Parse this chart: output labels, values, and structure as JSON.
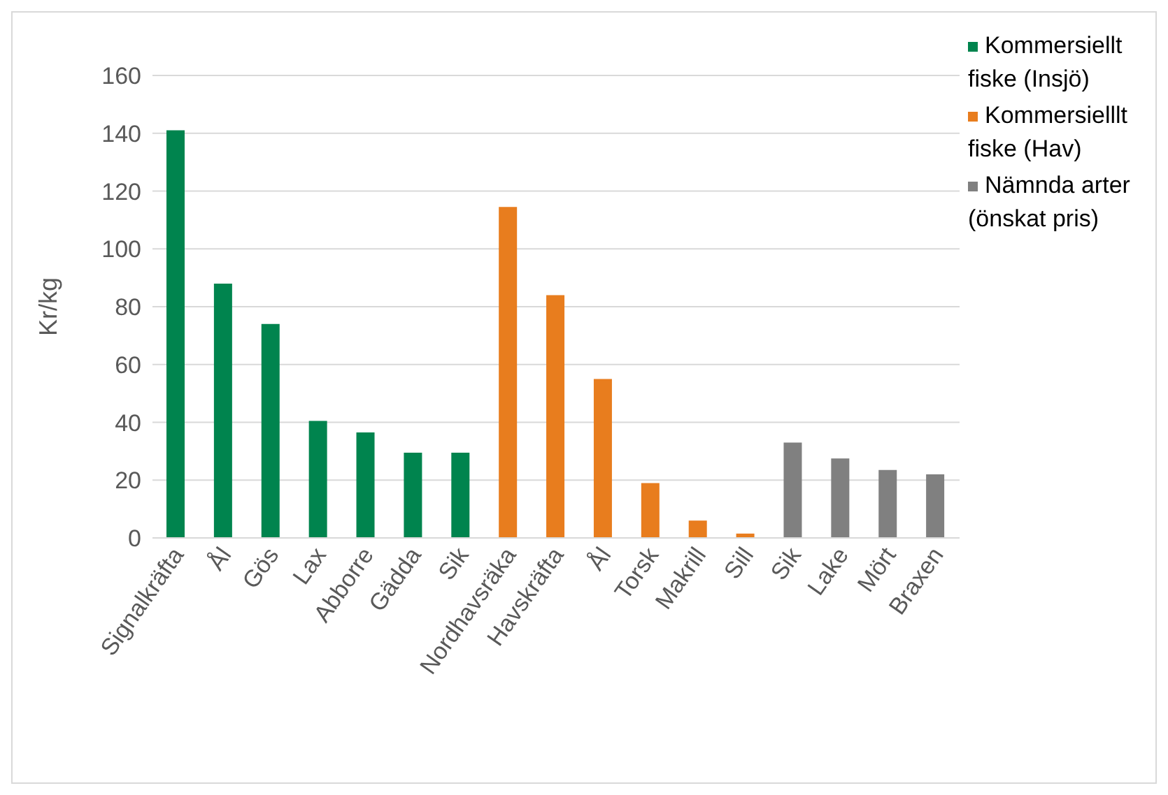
{
  "chart_data": {
    "type": "bar",
    "ylabel": "Kr/kg",
    "categories": [
      "Signalkräfta",
      "Ål",
      "Gös",
      "Lax",
      "Abborre",
      "Gädda",
      "Sik",
      "Nordhavsräka",
      "Havskräfta",
      "Ål",
      "Torsk",
      "Makrill",
      "Sill",
      "Sik",
      "Lake",
      "Mört",
      "Braxen"
    ],
    "series": [
      {
        "name": "Kommersiellt fiske (Insjö)",
        "color": "#00844e",
        "values": [
          141,
          88,
          74,
          40.5,
          36.5,
          29.5,
          29.5,
          null,
          null,
          null,
          null,
          null,
          null,
          null,
          null,
          null,
          null
        ]
      },
      {
        "name": "Kommersielllt fiske (Hav)",
        "color": "#e87d1e",
        "values": [
          null,
          null,
          null,
          null,
          null,
          null,
          null,
          114.5,
          84,
          55,
          19,
          6,
          1.5,
          null,
          null,
          null,
          null
        ]
      },
      {
        "name": "Nämnda arter (önskat pris)",
        "color": "#808080",
        "values": [
          null,
          null,
          null,
          null,
          null,
          null,
          null,
          null,
          null,
          null,
          null,
          null,
          null,
          33,
          27.5,
          23.5,
          22
        ]
      }
    ],
    "ylim": [
      0,
      160
    ],
    "yticks": [
      0,
      20,
      40,
      60,
      80,
      100,
      120,
      140,
      160
    ],
    "grid": "y",
    "legend": "top right"
  }
}
